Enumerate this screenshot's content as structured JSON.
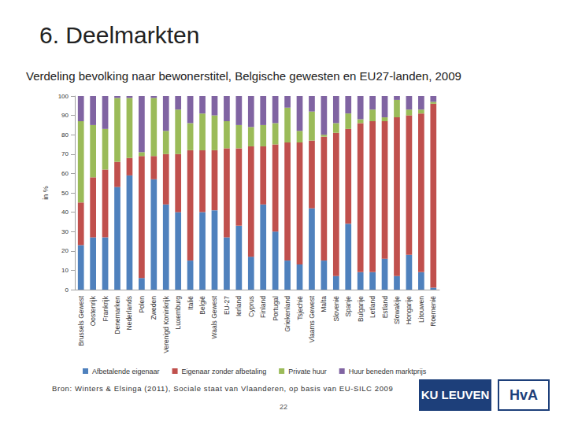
{
  "chart_data": {
    "type": "bar",
    "stacked": true,
    "title": "Verdeling bevolking naar bewonerstitel, Belgische gewesten en EU27-landen, 2009",
    "y_label": "in %",
    "categories": [
      "Brussels Gewest",
      "Oostenrijk",
      "Frankrijk",
      "Denemarken",
      "Nederlands",
      "Polen",
      "Zweden",
      "Verenigd Koninkrijk",
      "Luxemburg",
      "Italië",
      "België",
      "Waals Gewest",
      "EU-27",
      "Ierland",
      "Cyprus",
      "Finland",
      "Portugal",
      "Griekenland",
      "Tsjechië",
      "Vlaams Gewest",
      "Malta",
      "Slovenië",
      "Spanje",
      "Bulgarije",
      "Letland",
      "Estland",
      "Slowakije",
      "Hongarije",
      "Litouwen",
      "Roemenië"
    ],
    "series": [
      {
        "name": "Afbetalende eigenaar",
        "color": "#4f81bd",
        "values": [
          23,
          27,
          27,
          53,
          59,
          6,
          57,
          44,
          40,
          15,
          40,
          41,
          27,
          33,
          17,
          44,
          30,
          15,
          13,
          42,
          15,
          7,
          34,
          9,
          9,
          16,
          7,
          18,
          9,
          1
        ]
      },
      {
        "name": "Eigenaar zonder afbetaling",
        "color": "#c0504d",
        "values": [
          22,
          31,
          35,
          13,
          9,
          63,
          12,
          26,
          30,
          57,
          32,
          31,
          46,
          40,
          57,
          30,
          45,
          61,
          63,
          35,
          64,
          74,
          49,
          77,
          78,
          71,
          82,
          72,
          82,
          95
        ]
      },
      {
        "name": "Private huur",
        "color": "#9bbb59",
        "values": [
          42,
          27,
          21,
          33,
          31,
          2,
          30,
          12,
          23,
          14,
          19,
          18,
          14,
          12,
          10,
          11,
          11,
          18,
          6,
          15,
          1,
          5,
          8,
          2,
          6,
          2,
          9,
          3,
          2,
          1
        ]
      },
      {
        "name": "Huur beneden marktprijs",
        "color": "#8064a2",
        "values": [
          13,
          15,
          17,
          1,
          1,
          29,
          1,
          18,
          7,
          14,
          9,
          10,
          13,
          15,
          16,
          15,
          14,
          6,
          18,
          8,
          20,
          14,
          9,
          12,
          7,
          11,
          2,
          7,
          7,
          3
        ]
      }
    ],
    "ylim": [
      0,
      100
    ],
    "yticks": [
      0,
      10,
      20,
      30,
      40,
      50,
      60,
      70,
      80,
      90,
      100
    ],
    "grid": false,
    "legend": "bottom"
  },
  "slide": {
    "heading": "6. Deelmarkten",
    "source": "Bron: Winters & Elsinga (2011), Sociale staat van Vlaanderen, op basis van EU-SILC 2009",
    "page": 22,
    "logos": [
      "KU LEUVEN",
      "HvA"
    ]
  }
}
